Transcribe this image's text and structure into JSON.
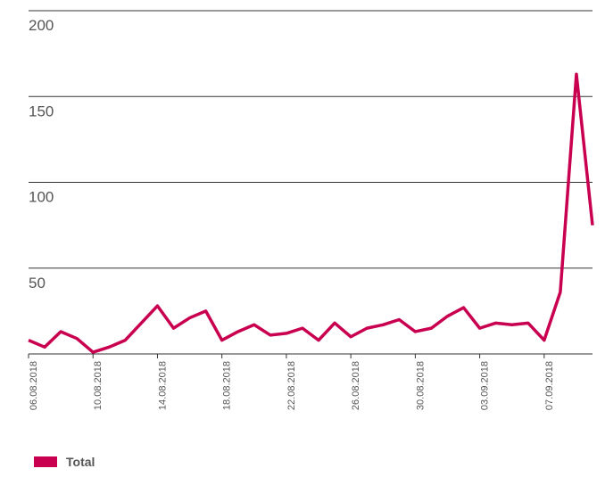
{
  "chart_data": {
    "type": "line",
    "categories": [
      "06.08.2018",
      null,
      null,
      null,
      "10.08.2018",
      null,
      null,
      null,
      "14.08.2018",
      null,
      null,
      null,
      "18.08.2018",
      null,
      null,
      null,
      "22.08.2018",
      null,
      null,
      null,
      "26.08.2018",
      null,
      null,
      null,
      "30.08.2018",
      null,
      null,
      null,
      "03.09.2018",
      null,
      null,
      null,
      "07.09.2018",
      null,
      null,
      null
    ],
    "series": [
      {
        "name": "Total",
        "color": "#c8004f",
        "values": [
          8,
          4,
          13,
          9,
          1,
          4,
          8,
          18,
          28,
          15,
          21,
          25,
          8,
          13,
          17,
          11,
          12,
          15,
          8,
          18,
          10,
          15,
          17,
          20,
          13,
          15,
          22,
          27,
          15,
          18,
          17,
          18,
          8,
          36,
          163,
          75
        ]
      }
    ],
    "ylim": [
      0,
      200
    ],
    "yticks": [
      50,
      100,
      150,
      200
    ],
    "grid": true,
    "legend": "bottom-left"
  }
}
